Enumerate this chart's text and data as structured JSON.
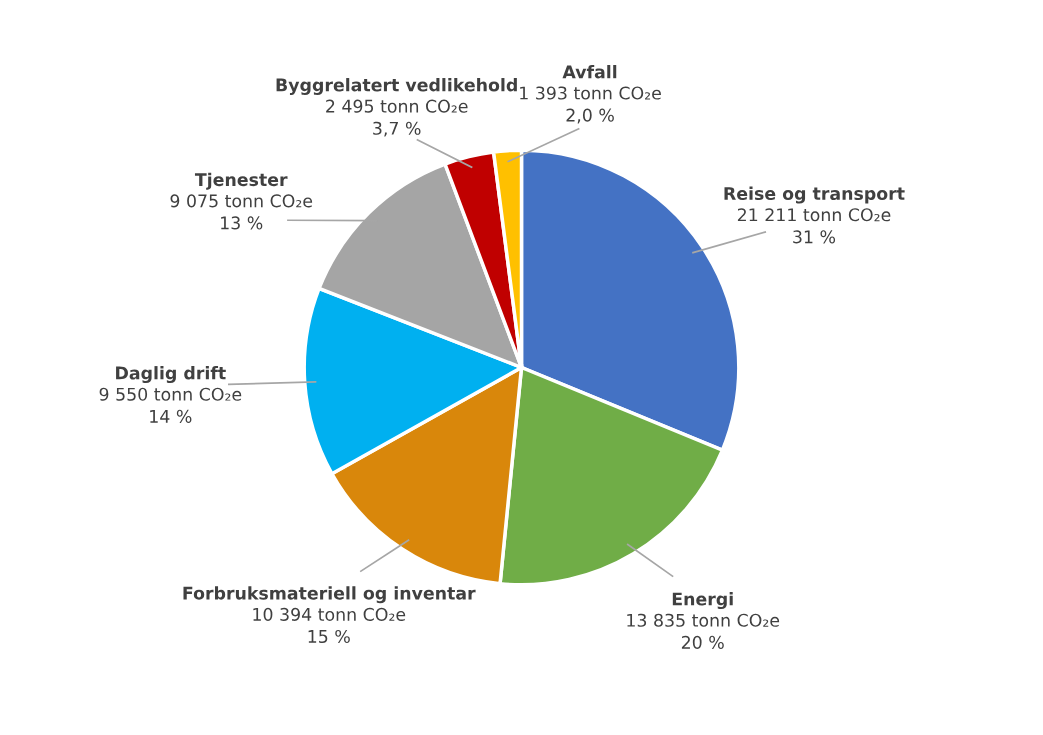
{
  "chart_data": {
    "type": "pie",
    "categories": [
      "Reise og transport",
      "Energi",
      "Forbruksmateriell og inventar",
      "Daglig drift",
      "Tjenester",
      "Byggrelatert vedlikehold",
      "Avfall"
    ],
    "values": [
      21211,
      13835,
      10394,
      9550,
      9075,
      2495,
      1393
    ],
    "colors": [
      "#4472c4",
      "#70ad47",
      "#d9870b",
      "#00b0f0",
      "#a5a5a5",
      "#c00000",
      "#ffc000"
    ],
    "value_labels": [
      "21 211 tonn CO₂e\n31 %",
      "13 835 tonn CO₂e\n20 %",
      "10 394 tonn CO₂e\n15 %",
      "9 550 tonn CO₂e\n14 %",
      "9 075 tonn CO₂e\n13 %",
      "2 495 tonn CO₂e\n3,7 %",
      "1 393 tonn CO₂e\n2,0 %"
    ],
    "legend": false
  }
}
